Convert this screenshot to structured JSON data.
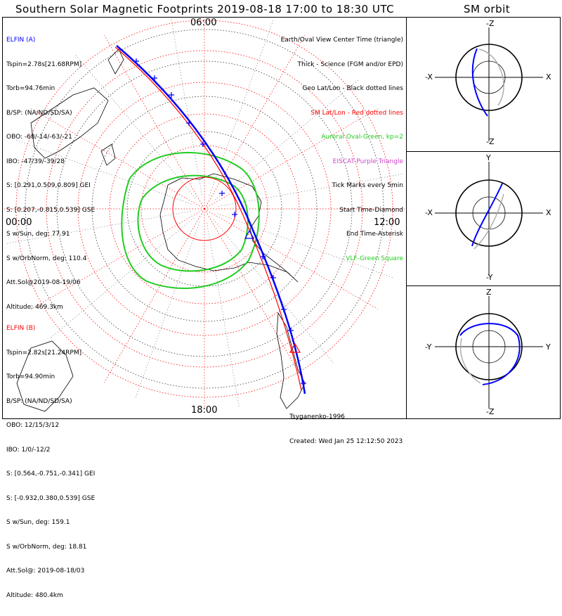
{
  "titles": {
    "main": "Southern Solar Magnetic Footprints 2019-08-18 17:00 to 18:30 UTC",
    "sm_orbit": "SM orbit"
  },
  "clock_labels": {
    "top": "06:00",
    "left": "00:00",
    "right": "12:00",
    "bottom": "18:00"
  },
  "elfin_a": {
    "name": "ELFIN (A)",
    "color": "#0000ff",
    "lines": [
      "Tspin=2.78s[21.68RPM]",
      "Torb=94.76min",
      "B/SP: (NA/ND/SD/SA)",
      "OBO: -68/-14/-63/-21",
      "IBO: -47/39/-39/28",
      "S: [0.291,0.509,0.809] GEI",
      "S: [0.207,-0.815,0.539] GSE",
      "S w/Sun, deg: 77.91",
      "S w/OrbNorm, deg: 110.4",
      "Att.Sol@2019-08-19/06",
      "Altitude: 469.3km"
    ]
  },
  "elfin_b": {
    "name": "ELFIN (B)",
    "color": "#ff0000",
    "lines": [
      "Tspin=2.82s[21.24RPM]",
      "Torb=94.90min",
      "B/SP: (NA/ND/SD/SA)",
      "OBO: 12/15/3/12",
      "IBO: 1/0/-12/2",
      "S: [0.564,-0.751,-0.341] GEI",
      "S: [-0.932,0.380,0.539] GSE",
      "S w/Sun, deg: 159.1",
      "S w/OrbNorm, deg: 18.81",
      "Att.Sol@: 2019-08-18/03",
      "Altitude: 480.4km"
    ]
  },
  "legend": [
    {
      "text": "Earth/Oval View Center Time (triangle)",
      "color": "#000000"
    },
    {
      "text": "Thick - Science (FGM and/or EPD)",
      "color": "#000000"
    },
    {
      "text": "Geo Lat/Lon - Black dotted lines",
      "color": "#000000"
    },
    {
      "text": "SM Lat/Lon - Red dotted lines",
      "color": "#ff0000"
    },
    {
      "text": "Auroral Oval-Green, kp=2",
      "color": "#22cc22"
    },
    {
      "text": "EISCAT-Purple Triangle",
      "color": "#cc44cc"
    },
    {
      "text": "Tick Marks every 5min",
      "color": "#000000"
    },
    {
      "text": "Start Time-Diamond",
      "color": "#000000"
    },
    {
      "text": "End Time-Asterisk",
      "color": "#000000"
    },
    {
      "text": "VLF-Green Square",
      "color": "#22cc22"
    }
  ],
  "credits": {
    "author": "Tsyganenko-1996",
    "created": "Created: Wed Jan 25 12:12:50 2023"
  },
  "orbit_panels": [
    {
      "top": "-Z",
      "bottom": "-Z",
      "left": "-X",
      "right": "X"
    },
    {
      "top": "Y",
      "bottom": "-Y",
      "left": "-X",
      "right": "X"
    },
    {
      "top": "Z",
      "bottom": "-Z",
      "left": "-Y",
      "right": "Y"
    }
  ]
}
